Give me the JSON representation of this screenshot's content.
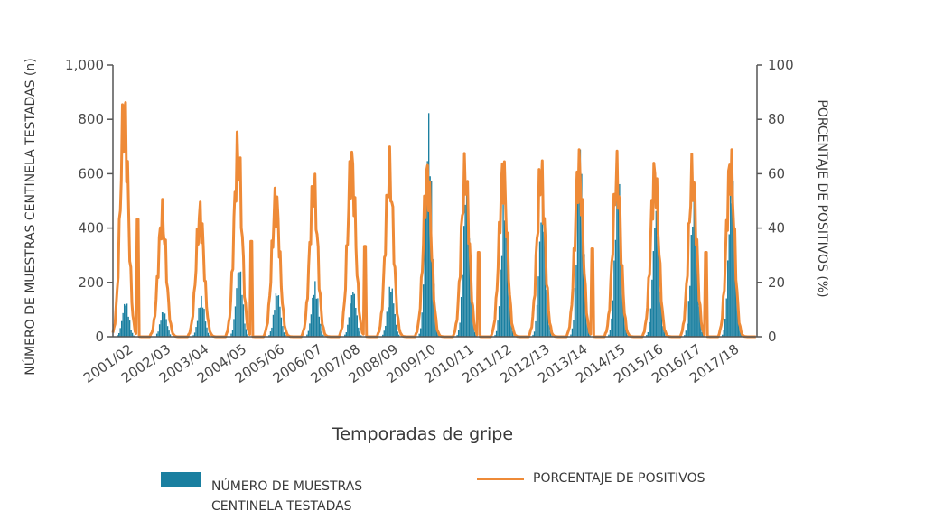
{
  "chart_data": {
    "type": "bar+line",
    "xlabel": "Temporadas de gripe",
    "ylabel_left": "NÚMERO DE MUESTRAS CENTINELA TESTADAS (n)",
    "ylabel_right": "PORCENTAJE DE POSITIVOS (%)",
    "ylim_left": [
      0,
      1000
    ],
    "ylim_right": [
      0,
      100
    ],
    "yticks_left": [
      "0",
      "200",
      "400",
      "600",
      "800",
      "1,000"
    ],
    "yticks_right": [
      "0",
      "20",
      "40",
      "60",
      "80",
      "100"
    ],
    "categories": [
      "2001/02",
      "2002/03",
      "2003/04",
      "2004/05",
      "2005/06",
      "2006/07",
      "2007/08",
      "2008/09",
      "2009/10",
      "2010/11",
      "2011/12",
      "2012/13",
      "2013/14",
      "2014/15",
      "2015/16",
      "2016/17",
      "2017/18"
    ],
    "series": [
      {
        "name": "NÚMERO DE MUESTRAS CENTINELA TESTADAS",
        "kind": "bar",
        "color": "#1a7fa0",
        "axis": "left",
        "season_peak": [
          135,
          100,
          150,
          270,
          175,
          205,
          180,
          200,
          830,
          590,
          540,
          520,
          720,
          620,
          480,
          530,
          630
        ],
        "season_peak_alt": [
          0,
          0,
          0,
          140,
          0,
          0,
          0,
          0,
          700,
          0,
          0,
          0,
          600,
          0,
          0,
          0,
          0
        ]
      },
      {
        "name": "PORCENTAJE DE POSITIVOS",
        "kind": "line",
        "color": "#ee8a37",
        "axis": "right",
        "season_peak": [
          96,
          51,
          52,
          78,
          58,
          63,
          74,
          70,
          69,
          69,
          70,
          69,
          72,
          69,
          69,
          69,
          73
        ]
      }
    ]
  },
  "legend": {
    "bar_label_line1": "NÚMERO DE MUESTRAS",
    "bar_label_line2": "CENTINELA TESTADAS",
    "line_label": "PORCENTAJE DE POSITIVOS",
    "bar_color": "#1a7fa0",
    "line_color": "#ee8a37"
  }
}
